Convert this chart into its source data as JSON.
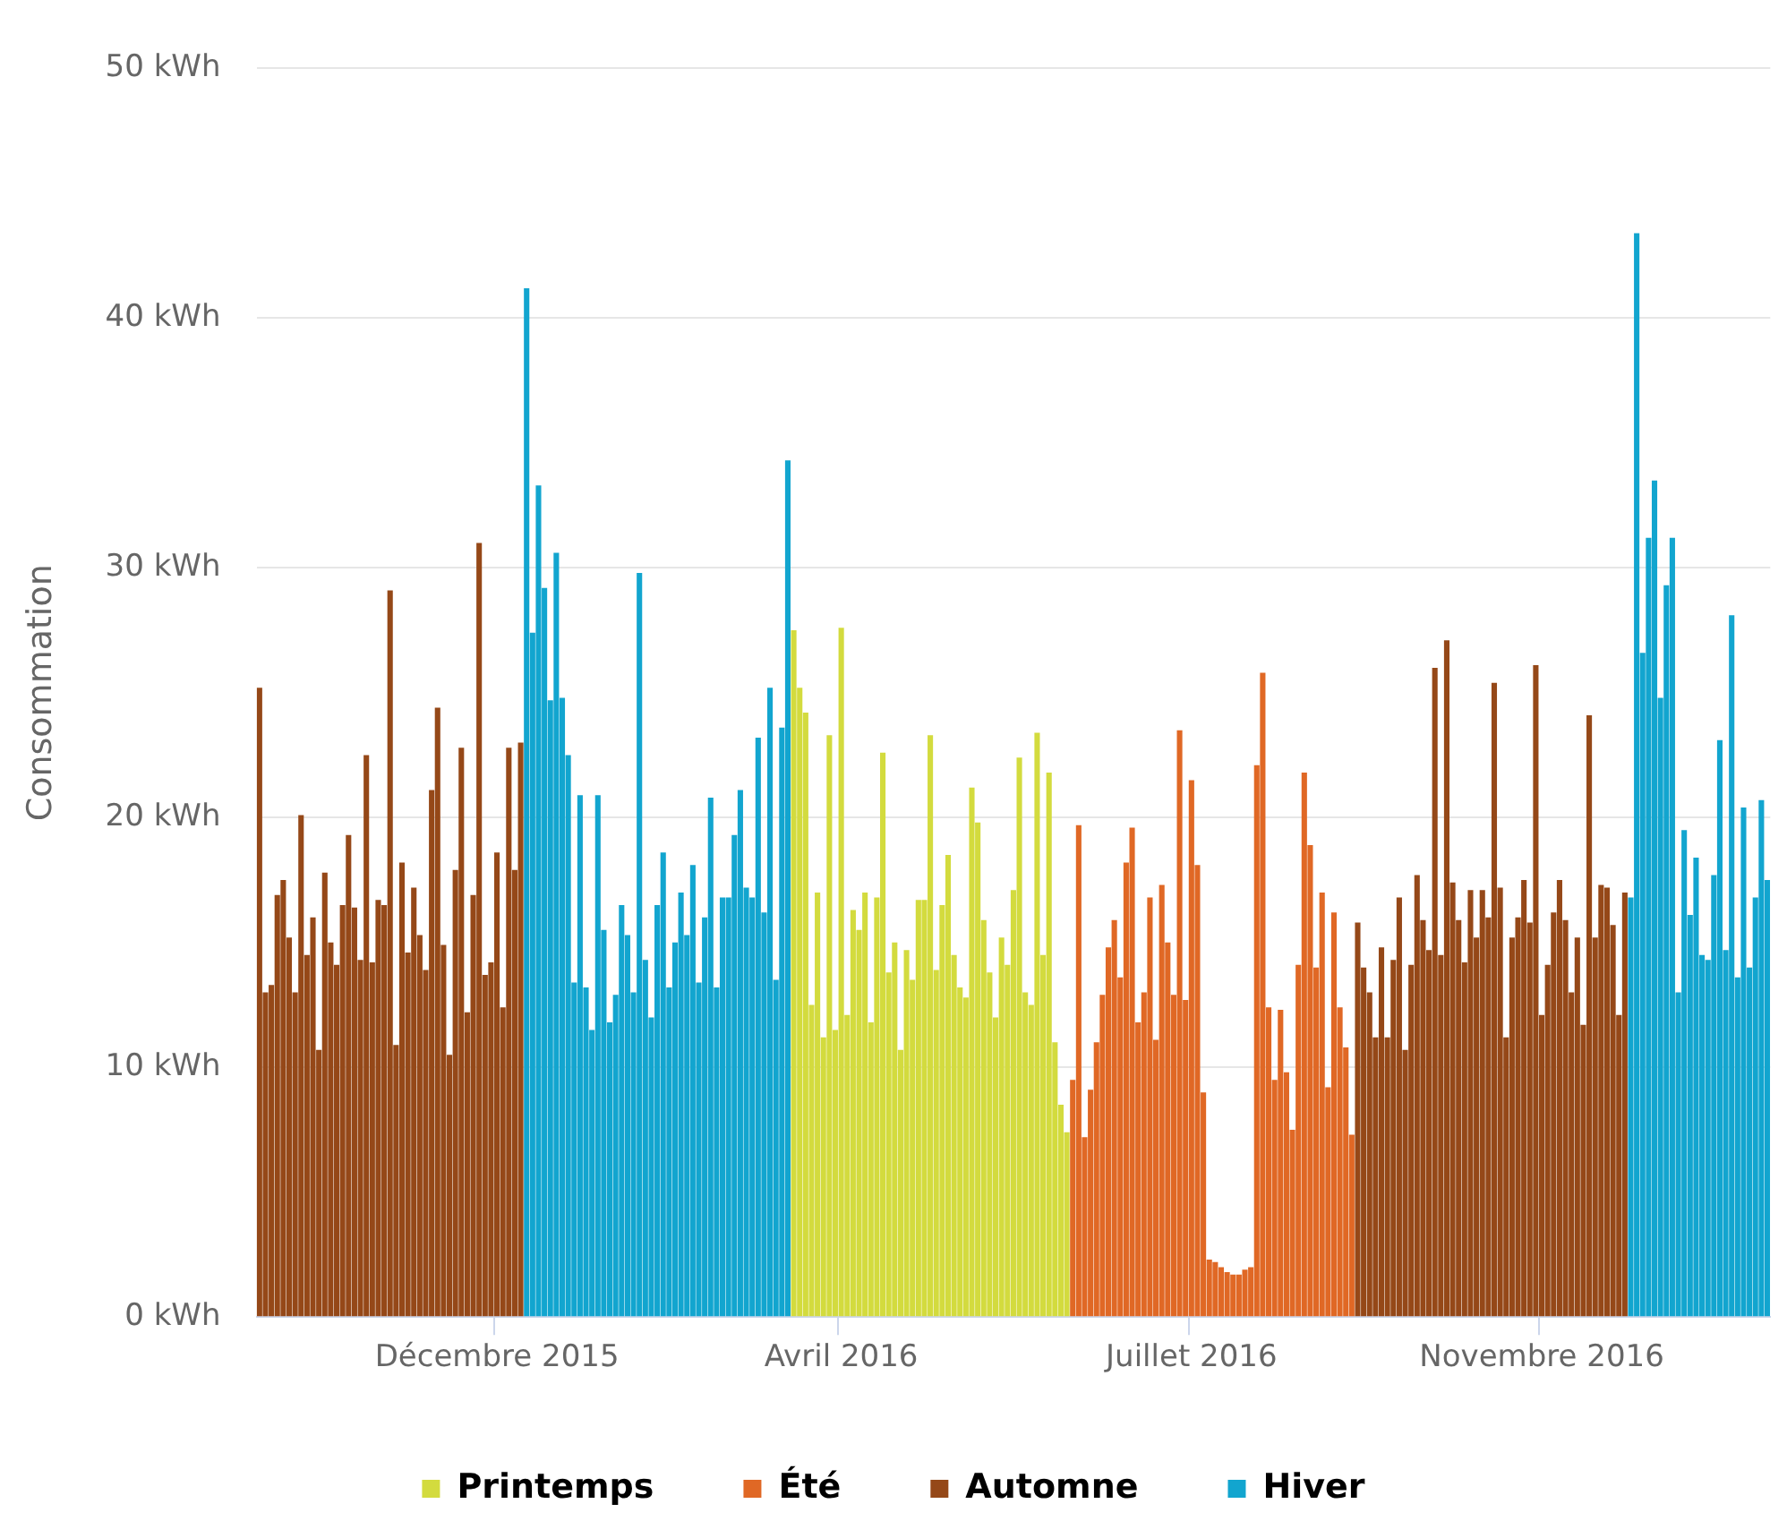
{
  "chart_data": {
    "type": "bar",
    "ylabel": "Consommation",
    "categories": [
      null,
      null,
      null,
      null,
      null,
      null,
      null,
      null,
      null,
      null,
      null,
      null,
      null,
      null,
      null,
      null,
      null,
      null,
      null,
      null,
      null,
      null,
      null,
      null,
      null,
      null,
      null,
      null,
      null,
      null,
      null,
      null,
      null,
      null,
      null,
      null,
      null,
      null,
      null,
      null,
      "Décembre 2015",
      null,
      null,
      null,
      null,
      null,
      null,
      null,
      null,
      null,
      null,
      null,
      null,
      null,
      null,
      null,
      null,
      null,
      null,
      null,
      null,
      null,
      null,
      null,
      null,
      null,
      null,
      null,
      null,
      null,
      null,
      null,
      null,
      null,
      null,
      null,
      null,
      null,
      null,
      null,
      null,
      null,
      null,
      null,
      null,
      null,
      null,
      null,
      null,
      null,
      null,
      null,
      null,
      null,
      null,
      null,
      null,
      null,
      "Avril 2016",
      null,
      null,
      null,
      null,
      null,
      null,
      null,
      null,
      null,
      null,
      null,
      null,
      null,
      null,
      null,
      null,
      null,
      null,
      null,
      null,
      null,
      null,
      null,
      null,
      null,
      null,
      null,
      null,
      null,
      null,
      null,
      null,
      null,
      null,
      null,
      null,
      null,
      null,
      null,
      null,
      null,
      null,
      null,
      null,
      null,
      null,
      null,
      null,
      null,
      null,
      null,
      null,
      null,
      null,
      null,
      null,
      null,
      null,
      "Juillet 2016",
      null,
      null,
      null,
      null,
      null,
      null,
      null,
      null,
      null,
      null,
      null,
      null,
      null,
      null,
      null,
      null,
      null,
      null,
      null,
      null,
      null,
      null,
      null,
      null,
      null,
      null,
      null,
      null,
      null,
      null,
      null,
      null,
      null,
      null,
      null,
      null,
      null,
      null,
      null,
      null,
      null,
      null,
      null,
      null,
      null,
      null,
      null,
      null,
      null,
      null,
      null,
      null,
      null,
      null,
      null,
      null,
      null,
      null,
      "Novembre 2016",
      null,
      null,
      null,
      null,
      null,
      null,
      null,
      null,
      null,
      null,
      null,
      null,
      null,
      null,
      null,
      null,
      null,
      null,
      null,
      null,
      null,
      null,
      null,
      null,
      null,
      null,
      null,
      null,
      null,
      null,
      null,
      null,
      null,
      null,
      null,
      null,
      null,
      null
    ],
    "ylim": [
      0,
      50
    ],
    "yticks": [
      {
        "value": 0,
        "label": "0 kWh"
      },
      {
        "value": 10,
        "label": "10 kWh"
      },
      {
        "value": 20,
        "label": "20 kWh"
      },
      {
        "value": 30,
        "label": "30 kWh"
      },
      {
        "value": 40,
        "label": "40 kWh"
      },
      {
        "value": 50,
        "label": "50 kWh"
      }
    ],
    "grid": "y",
    "legend": "bottom",
    "series": [
      {
        "name": "Printemps",
        "color": "#d3db3e",
        "values": [
          null,
          null,
          null,
          null,
          null,
          null,
          null,
          null,
          null,
          null,
          null,
          null,
          null,
          null,
          null,
          null,
          null,
          null,
          null,
          null,
          null,
          null,
          null,
          null,
          null,
          null,
          null,
          null,
          null,
          null,
          null,
          null,
          null,
          null,
          null,
          null,
          null,
          null,
          null,
          null,
          null,
          null,
          null,
          null,
          null,
          null,
          null,
          null,
          null,
          null,
          null,
          null,
          null,
          null,
          null,
          null,
          null,
          null,
          null,
          null,
          null,
          null,
          null,
          null,
          null,
          null,
          null,
          null,
          null,
          null,
          null,
          null,
          null,
          null,
          null,
          null,
          null,
          null,
          null,
          null,
          null,
          null,
          null,
          null,
          null,
          null,
          null,
          null,
          null,
          null,
          27.5,
          25.2,
          24.2,
          12.5,
          17.0,
          11.2,
          23.3,
          11.5,
          27.6,
          12.1,
          16.3,
          15.5,
          17.0,
          11.8,
          16.8,
          22.6,
          13.8,
          15.0,
          10.7,
          14.7,
          13.5,
          16.7,
          16.7,
          23.3,
          13.9,
          16.5,
          18.5,
          14.5,
          13.2,
          12.8,
          21.2,
          19.8,
          15.9,
          13.8,
          12.0,
          15.2,
          14.1,
          17.1,
          22.4,
          13.0,
          12.5,
          23.4,
          14.5,
          21.8,
          11.0,
          8.5,
          7.4,
          null,
          null,
          null,
          null,
          null,
          null,
          null,
          null,
          null,
          null,
          null,
          null,
          null,
          null,
          null,
          null,
          null,
          null,
          null,
          null,
          null,
          null,
          null,
          null,
          null,
          null,
          null,
          null,
          null,
          null,
          null,
          null,
          null,
          null,
          null,
          null,
          null,
          null,
          null,
          null,
          null,
          null,
          null,
          null,
          null,
          null,
          null,
          null,
          null,
          null,
          null,
          null,
          null,
          null,
          null,
          null,
          null,
          null,
          null,
          null,
          null,
          null,
          null,
          null,
          null,
          null,
          null,
          null,
          null,
          null,
          null,
          null,
          null,
          null,
          null,
          null,
          null,
          null,
          null,
          null,
          null,
          null,
          null,
          null,
          null,
          null,
          null,
          null,
          null,
          null,
          null,
          null,
          null,
          null,
          null,
          null,
          null,
          null,
          null,
          null,
          null,
          null,
          null,
          null,
          null,
          null,
          null,
          null,
          null,
          null,
          null,
          null,
          null,
          null,
          null,
          null,
          null,
          null
        ]
      },
      {
        "name": "Été",
        "color": "#e06825",
        "values": [
          null,
          null,
          null,
          null,
          null,
          null,
          null,
          null,
          null,
          null,
          null,
          null,
          null,
          null,
          null,
          null,
          null,
          null,
          null,
          null,
          null,
          null,
          null,
          null,
          null,
          null,
          null,
          null,
          null,
          null,
          null,
          null,
          null,
          null,
          null,
          null,
          null,
          null,
          null,
          null,
          null,
          null,
          null,
          null,
          null,
          null,
          null,
          null,
          null,
          null,
          null,
          null,
          null,
          null,
          null,
          null,
          null,
          null,
          null,
          null,
          null,
          null,
          null,
          null,
          null,
          null,
          null,
          null,
          null,
          null,
          null,
          null,
          null,
          null,
          null,
          null,
          null,
          null,
          null,
          null,
          null,
          null,
          null,
          null,
          null,
          null,
          null,
          null,
          null,
          null,
          null,
          null,
          null,
          null,
          null,
          null,
          null,
          null,
          null,
          null,
          null,
          null,
          null,
          null,
          null,
          null,
          null,
          null,
          null,
          null,
          null,
          null,
          null,
          null,
          null,
          null,
          null,
          null,
          null,
          null,
          null,
          null,
          null,
          null,
          null,
          null,
          null,
          null,
          null,
          null,
          null,
          null,
          null,
          null,
          null,
          null,
          null,
          9.5,
          19.7,
          7.2,
          9.1,
          11.0,
          12.9,
          14.8,
          15.9,
          13.6,
          18.2,
          19.6,
          11.8,
          13.0,
          16.8,
          11.1,
          17.3,
          15.0,
          12.9,
          23.5,
          12.7,
          21.5,
          18.1,
          9.0,
          2.3,
          2.2,
          2.0,
          1.8,
          1.7,
          1.7,
          1.9,
          2.0,
          22.1,
          25.8,
          12.4,
          9.5,
          12.3,
          9.8,
          7.5,
          14.1,
          21.8,
          18.9,
          14.0,
          17.0,
          9.2,
          16.2,
          12.4,
          10.8,
          7.3,
          null,
          null,
          null,
          null,
          null,
          null,
          null,
          null,
          null,
          null,
          null,
          null,
          null,
          null,
          null,
          null,
          null,
          null,
          null,
          null,
          null,
          null,
          null,
          null,
          null,
          null,
          null,
          null,
          null,
          null,
          null,
          null,
          null,
          null,
          null,
          null,
          null,
          null,
          null,
          null,
          null,
          null,
          null,
          null,
          null,
          null,
          null,
          null,
          null,
          null,
          null,
          null,
          null,
          null,
          null,
          null,
          null,
          null,
          null,
          null,
          null,
          null,
          null,
          null,
          null,
          null,
          null,
          null,
          null,
          null
        ]
      },
      {
        "name": "Automne",
        "color": "#954818",
        "values": [
          25.2,
          13.0,
          13.3,
          16.9,
          17.5,
          15.2,
          13.0,
          20.1,
          14.5,
          16.0,
          10.7,
          17.8,
          15.0,
          14.1,
          16.5,
          19.3,
          16.4,
          14.3,
          22.5,
          14.2,
          16.7,
          16.5,
          29.1,
          10.9,
          18.2,
          14.6,
          17.2,
          15.3,
          13.9,
          21.1,
          24.4,
          14.9,
          10.5,
          17.9,
          22.8,
          12.2,
          16.9,
          31.0,
          13.7,
          14.2,
          18.6,
          12.4,
          22.8,
          17.9,
          23.0,
          null,
          null,
          null,
          null,
          null,
          null,
          null,
          null,
          null,
          null,
          null,
          null,
          null,
          null,
          null,
          null,
          null,
          null,
          null,
          null,
          null,
          null,
          null,
          null,
          null,
          null,
          null,
          null,
          null,
          null,
          null,
          null,
          null,
          null,
          null,
          null,
          null,
          null,
          null,
          null,
          null,
          null,
          null,
          null,
          null,
          null,
          null,
          null,
          null,
          null,
          null,
          null,
          null,
          null,
          null,
          null,
          null,
          null,
          null,
          null,
          null,
          null,
          null,
          null,
          null,
          null,
          null,
          null,
          null,
          null,
          null,
          null,
          null,
          null,
          null,
          null,
          null,
          null,
          null,
          null,
          null,
          null,
          null,
          null,
          null,
          null,
          null,
          null,
          null,
          null,
          null,
          null,
          null,
          null,
          null,
          null,
          null,
          null,
          null,
          null,
          null,
          null,
          null,
          null,
          null,
          null,
          null,
          null,
          null,
          null,
          null,
          null,
          null,
          null,
          null,
          null,
          null,
          null,
          null,
          null,
          null,
          null,
          null,
          null,
          null,
          null,
          null,
          null,
          null,
          null,
          null,
          null,
          null,
          null,
          null,
          null,
          null,
          null,
          null,
          null,
          15.8,
          14.0,
          13.0,
          11.2,
          14.8,
          11.2,
          14.3,
          16.8,
          10.7,
          14.1,
          17.7,
          15.9,
          14.7,
          26.0,
          14.5,
          27.1,
          17.4,
          15.9,
          14.2,
          17.1,
          15.2,
          17.1,
          16.0,
          25.4,
          17.2,
          11.2,
          15.2,
          16.0,
          17.5,
          15.8,
          26.1,
          12.1,
          14.1,
          16.2,
          17.5,
          15.9,
          13.0,
          15.2,
          11.7,
          24.1,
          15.2,
          17.3,
          17.2,
          15.7,
          12.1,
          17.0,
          null,
          null,
          null,
          null,
          null,
          null,
          null,
          null,
          null,
          null,
          null,
          null,
          null,
          null,
          null,
          null,
          null,
          null,
          null,
          null,
          null,
          null,
          null,
          null
        ]
      },
      {
        "name": "Hiver",
        "color": "#12a5cf",
        "values": [
          null,
          null,
          null,
          null,
          null,
          null,
          null,
          null,
          null,
          null,
          null,
          null,
          null,
          null,
          null,
          null,
          null,
          null,
          null,
          null,
          null,
          null,
          null,
          null,
          null,
          null,
          null,
          null,
          null,
          null,
          null,
          null,
          null,
          null,
          null,
          null,
          null,
          null,
          null,
          null,
          null,
          null,
          null,
          null,
          null,
          41.2,
          27.4,
          33.3,
          29.2,
          24.7,
          30.6,
          24.8,
          22.5,
          13.4,
          20.9,
          13.2,
          11.5,
          20.9,
          15.5,
          11.8,
          12.9,
          16.5,
          15.3,
          13.0,
          29.8,
          14.3,
          12.0,
          16.5,
          18.6,
          13.2,
          15.0,
          17.0,
          15.3,
          18.1,
          13.4,
          16.0,
          20.8,
          13.2,
          16.8,
          16.8,
          19.3,
          21.1,
          17.2,
          16.8,
          23.2,
          16.2,
          25.2,
          13.5,
          23.6,
          34.3,
          null,
          null,
          null,
          null,
          null,
          null,
          null,
          null,
          null,
          null,
          null,
          null,
          null,
          null,
          null,
          null,
          null,
          null,
          null,
          null,
          null,
          null,
          null,
          null,
          null,
          null,
          null,
          null,
          null,
          null,
          null,
          null,
          null,
          null,
          null,
          null,
          null,
          null,
          null,
          null,
          null,
          null,
          null,
          null,
          null,
          null,
          null,
          null,
          null,
          null,
          null,
          null,
          null,
          null,
          null,
          null,
          null,
          null,
          null,
          null,
          null,
          null,
          null,
          null,
          null,
          null,
          null,
          null,
          null,
          null,
          null,
          null,
          null,
          null,
          null,
          null,
          null,
          null,
          null,
          null,
          null,
          null,
          null,
          null,
          null,
          null,
          null,
          null,
          null,
          null,
          null,
          null,
          null,
          null,
          null,
          null,
          null,
          null,
          null,
          null,
          null,
          null,
          null,
          null,
          null,
          null,
          null,
          null,
          null,
          null,
          null,
          null,
          null,
          null,
          null,
          null,
          null,
          null,
          null,
          null,
          null,
          null,
          null,
          null,
          null,
          null,
          null,
          null,
          null,
          null,
          null,
          null,
          null,
          null,
          null,
          null,
          null,
          null,
          null,
          null,
          null,
          16.8,
          43.4,
          26.6,
          31.2,
          33.5,
          24.8,
          29.3,
          31.2,
          13.0,
          19.5,
          16.1,
          18.4,
          14.5,
          14.3,
          17.7,
          23.1,
          14.7,
          28.1,
          13.6,
          20.4,
          14.0,
          16.8,
          20.7,
          17.5
        ]
      }
    ]
  }
}
